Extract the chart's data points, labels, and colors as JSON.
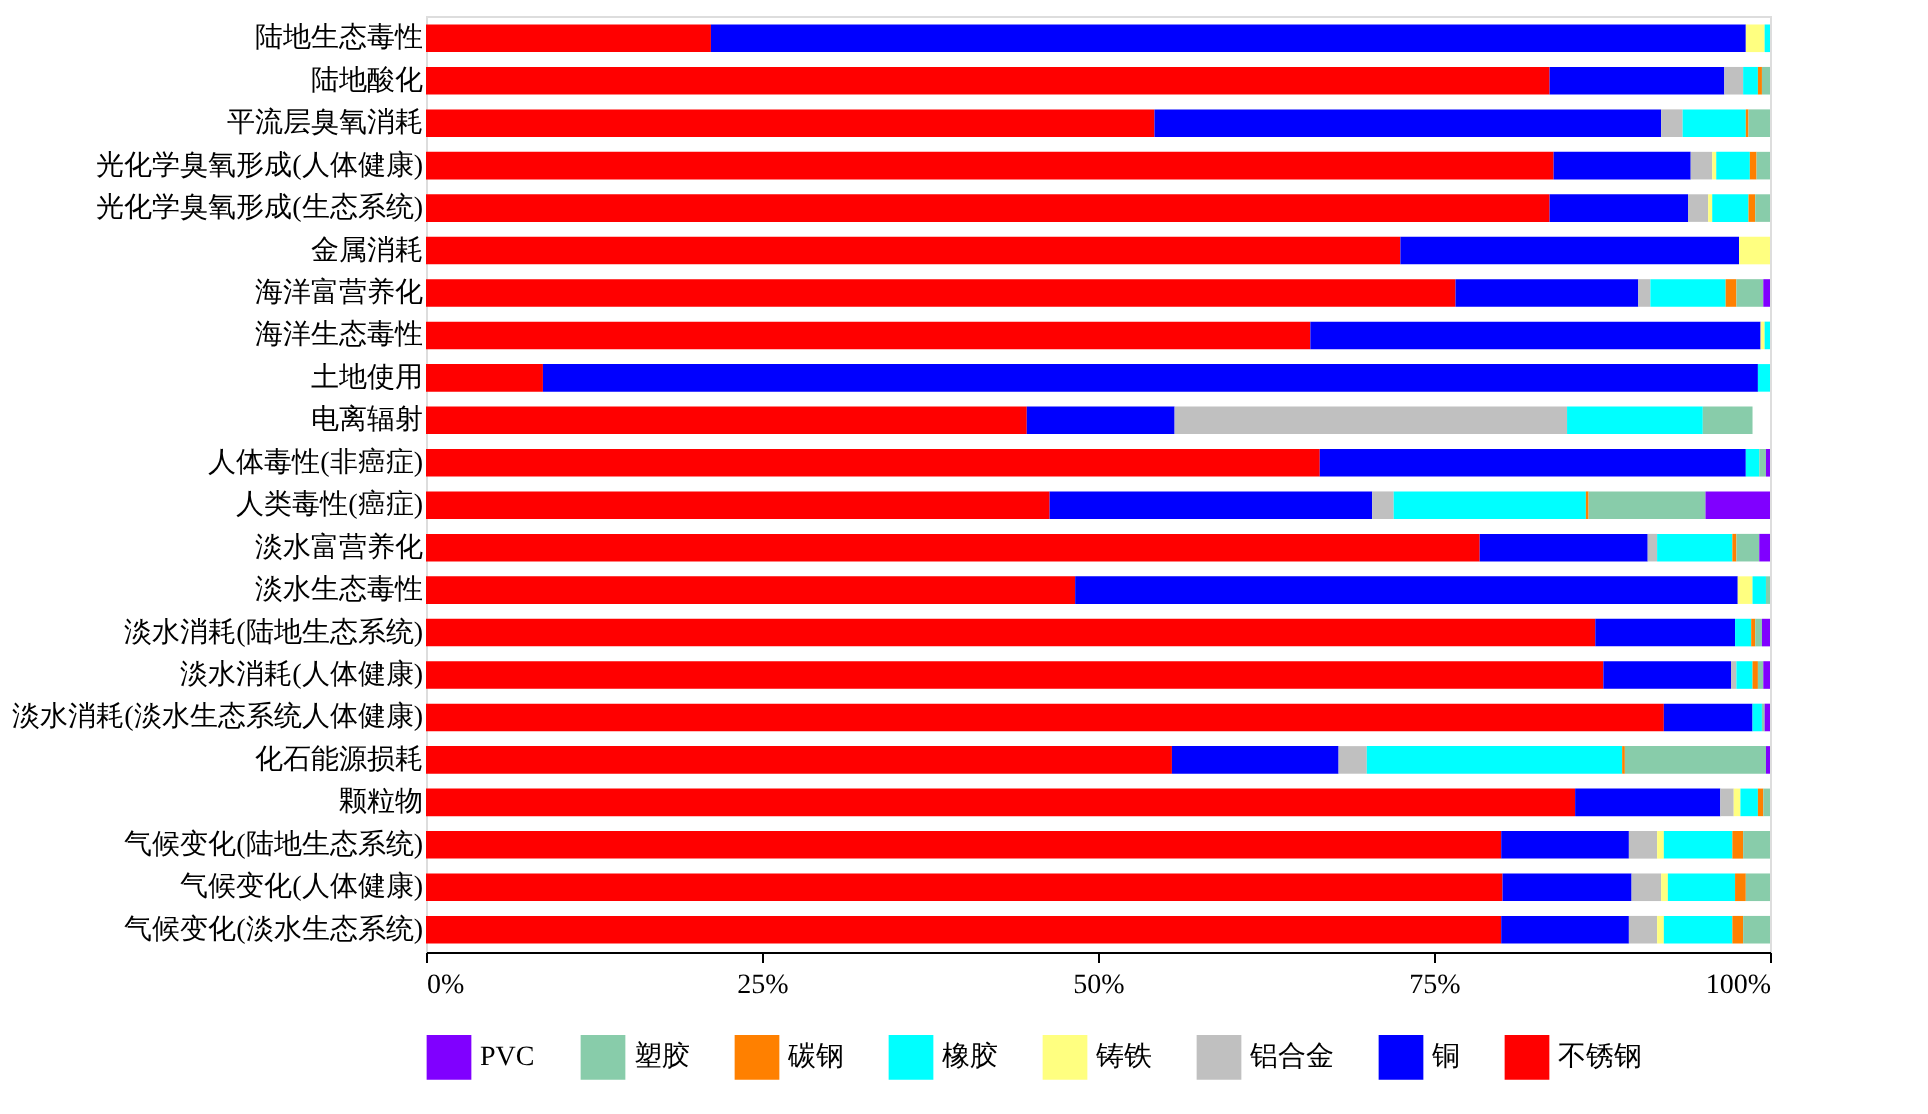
{
  "chart_data": {
    "type": "bar",
    "orientation": "horizontal",
    "stacked": true,
    "categories": [
      "陆地生态毒性",
      "陆地酸化",
      "平流层臭氧消耗",
      "光化学臭氧形成(人体健康)",
      "光化学臭氧形成(生态系统)",
      "金属消耗",
      "海洋富营养化",
      "海洋生态毒性",
      "土地使用",
      "电离辐射",
      "人体毒性(非癌症)",
      "人类毒性(癌症)",
      "淡水富营养化",
      "淡水生态毒性",
      "淡水消耗(陆地生态系统)",
      "淡水消耗(人体健康)",
      "淡水消耗(淡水生态系统人体健康)",
      "化石能源损耗",
      "颗粒物",
      "气候变化(陆地生态系统)",
      "气候变化(人体健康)",
      "气候变化(淡水生态系统)"
    ],
    "series": [
      {
        "name": "不锈钢",
        "color": "#ff0000",
        "values": [
          21.2,
          83.6,
          54.2,
          83.9,
          83.6,
          72.5,
          76.6,
          65.8,
          8.7,
          44.7,
          66.5,
          46.4,
          78.4,
          48.3,
          87.0,
          87.6,
          92.1,
          55.5,
          85.5,
          80.0,
          80.1,
          80.0
        ]
      },
      {
        "name": "铜",
        "color": "#0000ff",
        "values": [
          77.0,
          13.0,
          37.7,
          10.2,
          10.3,
          25.2,
          13.6,
          33.5,
          90.4,
          11.0,
          31.7,
          24.0,
          12.5,
          49.3,
          10.4,
          9.5,
          6.6,
          12.4,
          10.8,
          9.5,
          9.6,
          9.5
        ]
      },
      {
        "name": "铝合金",
        "color": "#c0c0c0",
        "values": [
          null,
          1.4,
          1.6,
          1.6,
          1.5,
          null,
          0.9,
          null,
          null,
          29.2,
          null,
          1.6,
          0.7,
          null,
          null,
          0.4,
          null,
          2.1,
          1.0,
          2.1,
          2.2,
          2.1
        ]
      },
      {
        "name": "铸铁",
        "color": "#ffff80",
        "values": [
          1.4,
          null,
          null,
          0.3,
          0.3,
          2.3,
          null,
          0.3,
          null,
          null,
          null,
          null,
          null,
          1.1,
          null,
          null,
          null,
          null,
          0.5,
          0.5,
          0.5,
          0.5
        ]
      },
      {
        "name": "橡胶",
        "color": "#00ffff",
        "values": [
          0.4,
          1.1,
          4.7,
          2.5,
          2.7,
          null,
          5.6,
          0.4,
          0.9,
          10.1,
          1.0,
          14.3,
          5.6,
          1.0,
          1.2,
          1.2,
          0.7,
          19.0,
          1.3,
          5.1,
          5.0,
          5.1
        ]
      },
      {
        "name": "碳钢",
        "color": "#ff8000",
        "values": [
          null,
          0.3,
          0.2,
          0.5,
          0.5,
          null,
          0.8,
          null,
          null,
          null,
          null,
          0.2,
          0.3,
          null,
          0.3,
          0.4,
          null,
          0.2,
          0.4,
          0.8,
          0.8,
          0.8
        ]
      },
      {
        "name": "塑胶",
        "color": "#88ccaa",
        "values": [
          null,
          0.6,
          1.6,
          1.0,
          1.1,
          null,
          2.0,
          null,
          null,
          3.7,
          0.5,
          8.7,
          1.7,
          0.3,
          0.5,
          0.4,
          0.2,
          10.5,
          0.5,
          2.0,
          1.8,
          2.0
        ]
      },
      {
        "name": "PVC",
        "color": "#8000ff",
        "values": [
          null,
          null,
          null,
          null,
          null,
          null,
          0.5,
          null,
          null,
          null,
          0.3,
          4.8,
          0.8,
          null,
          0.6,
          0.5,
          0.4,
          0.3,
          null,
          null,
          null,
          null
        ]
      }
    ],
    "xlim": [
      0,
      100
    ],
    "xticks": [
      {
        "value": 0,
        "label": "0%"
      },
      {
        "value": 25,
        "label": "25%"
      },
      {
        "value": 50,
        "label": "50%"
      },
      {
        "value": 75,
        "label": "75%"
      },
      {
        "value": 100,
        "label": "100%"
      }
    ],
    "grid": false,
    "legend": "bottom"
  }
}
